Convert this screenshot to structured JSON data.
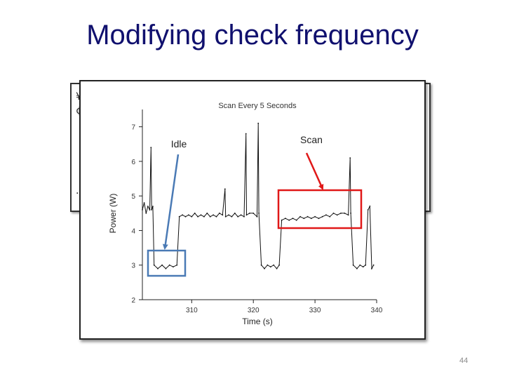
{
  "slide": {
    "title": "Modifying check frequency",
    "page_number": "44"
  },
  "annotations": {
    "idle_label": "Idle",
    "scan_label": "Scan",
    "idle_color": "#4a7ab5",
    "scan_color": "#e01818"
  },
  "chart_data": {
    "type": "line",
    "title": "Scan Every 5 Seconds",
    "xlabel": "Time (s)",
    "ylabel": "Power (W)",
    "xlim": [
      302,
      340
    ],
    "ylim": [
      2,
      7.5
    ],
    "xticks": [
      310,
      320,
      330,
      340
    ],
    "xtick_labels": [
      "310",
      "320",
      "330",
      "340"
    ],
    "yticks": [
      2,
      3,
      4,
      5,
      6,
      7
    ],
    "ytick_labels": [
      "2",
      "3",
      "4",
      "5",
      "6",
      "7"
    ],
    "grid": false,
    "legend": "none",
    "line_color": "#111111",
    "series": [
      {
        "values": [
          [
            302.0,
            4.6
          ],
          [
            302.3,
            4.8
          ],
          [
            302.6,
            4.5
          ],
          [
            302.9,
            4.7
          ],
          [
            303.2,
            4.6
          ],
          [
            303.4,
            6.4
          ],
          [
            303.5,
            4.6
          ],
          [
            303.7,
            4.7
          ],
          [
            303.9,
            3.0
          ],
          [
            304.5,
            2.9
          ],
          [
            305.2,
            3.0
          ],
          [
            305.8,
            2.9
          ],
          [
            306.4,
            3.0
          ],
          [
            307.0,
            2.95
          ],
          [
            307.6,
            3.0
          ],
          [
            308.0,
            4.4
          ],
          [
            308.5,
            4.45
          ],
          [
            309.0,
            4.4
          ],
          [
            309.5,
            4.45
          ],
          [
            310.0,
            4.4
          ],
          [
            310.5,
            4.5
          ],
          [
            311.0,
            4.4
          ],
          [
            311.5,
            4.45
          ],
          [
            312.0,
            4.4
          ],
          [
            312.5,
            4.5
          ],
          [
            313.0,
            4.4
          ],
          [
            313.5,
            4.45
          ],
          [
            314.0,
            4.4
          ],
          [
            314.5,
            4.5
          ],
          [
            315.0,
            4.45
          ],
          [
            315.4,
            5.2
          ],
          [
            315.5,
            4.4
          ],
          [
            316.0,
            4.45
          ],
          [
            316.5,
            4.4
          ],
          [
            317.0,
            4.5
          ],
          [
            317.5,
            4.4
          ],
          [
            318.0,
            4.45
          ],
          [
            318.5,
            4.4
          ],
          [
            318.8,
            6.8
          ],
          [
            318.9,
            4.45
          ],
          [
            319.4,
            4.5
          ],
          [
            320.0,
            4.5
          ],
          [
            320.6,
            4.4
          ],
          [
            320.8,
            7.1
          ],
          [
            320.9,
            4.5
          ],
          [
            321.3,
            3.0
          ],
          [
            321.8,
            2.9
          ],
          [
            322.3,
            3.0
          ],
          [
            322.8,
            2.95
          ],
          [
            323.3,
            3.0
          ],
          [
            323.8,
            2.9
          ],
          [
            324.2,
            3.0
          ],
          [
            324.6,
            4.3
          ],
          [
            325.2,
            4.35
          ],
          [
            325.8,
            4.3
          ],
          [
            326.4,
            4.35
          ],
          [
            327.0,
            4.3
          ],
          [
            327.6,
            4.4
          ],
          [
            328.2,
            4.35
          ],
          [
            328.8,
            4.4
          ],
          [
            329.4,
            4.35
          ],
          [
            330.0,
            4.4
          ],
          [
            330.6,
            4.35
          ],
          [
            331.2,
            4.4
          ],
          [
            331.8,
            4.45
          ],
          [
            332.4,
            4.4
          ],
          [
            333.0,
            4.5
          ],
          [
            333.6,
            4.45
          ],
          [
            334.2,
            4.5
          ],
          [
            334.8,
            4.5
          ],
          [
            335.4,
            4.45
          ],
          [
            335.7,
            6.1
          ],
          [
            335.8,
            4.5
          ],
          [
            336.2,
            3.0
          ],
          [
            336.8,
            2.9
          ],
          [
            337.3,
            3.0
          ],
          [
            337.8,
            2.95
          ],
          [
            338.2,
            3.0
          ],
          [
            338.6,
            4.6
          ],
          [
            338.9,
            4.7
          ],
          [
            339.2,
            2.9
          ],
          [
            339.5,
            3.0
          ]
        ]
      }
    ]
  }
}
